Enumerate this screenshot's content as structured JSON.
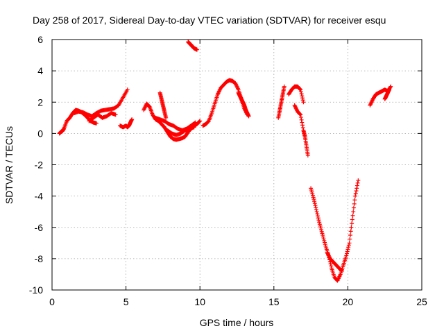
{
  "chart_data": {
    "type": "scatter",
    "title": "Day 258 of 2017, Sidereal Day-to-day VTEC variation (SDTVAR) for receiver esqu",
    "xlabel": "GPS time / hours",
    "ylabel": "SDTVAR / TECUs",
    "xlim": [
      0,
      25
    ],
    "ylim": [
      -10,
      6
    ],
    "xticks": [
      0,
      5,
      10,
      15,
      20,
      25
    ],
    "yticks": [
      -10,
      -8,
      -6,
      -4,
      -2,
      0,
      2,
      4,
      6
    ],
    "grid": true,
    "marker": "+",
    "color": "#ff0000",
    "series": [
      {
        "name": "seg1",
        "x": [
          0.5,
          0.6,
          0.7,
          0.8,
          1.0,
          1.2,
          1.4,
          1.6,
          1.8,
          2.0,
          2.2,
          2.4,
          2.6,
          2.8,
          3.0
        ],
        "y": [
          0.0,
          0.1,
          0.15,
          0.3,
          0.8,
          1.0,
          1.3,
          1.5,
          1.45,
          1.35,
          1.2,
          1.0,
          0.8,
          0.7,
          0.65
        ]
      },
      {
        "name": "seg2",
        "x": [
          1.5,
          1.8,
          2.1,
          2.4,
          2.7,
          3.0,
          3.3,
          3.6,
          3.9,
          4.2,
          4.5,
          4.8,
          5.1
        ],
        "y": [
          1.3,
          1.4,
          1.35,
          1.2,
          1.1,
          1.3,
          1.45,
          1.5,
          1.55,
          1.6,
          1.8,
          2.3,
          2.8
        ]
      },
      {
        "name": "seg3",
        "x": [
          2.5,
          2.8,
          3.1,
          3.4,
          3.7,
          4.0,
          4.3
        ],
        "y": [
          0.8,
          1.0,
          1.2,
          1.0,
          1.1,
          1.3,
          1.2
        ]
      },
      {
        "name": "seg4",
        "x": [
          4.6,
          4.8,
          5.0,
          5.1,
          5.2,
          5.3,
          5.4
        ],
        "y": [
          0.5,
          0.4,
          0.5,
          0.4,
          0.5,
          0.7,
          0.9
        ]
      },
      {
        "name": "seg5",
        "x": [
          6.2,
          6.4,
          6.6,
          6.8,
          7.0,
          7.2,
          7.4,
          7.6,
          7.8,
          8.0,
          8.2,
          8.4,
          8.6,
          8.8,
          9.0,
          9.2,
          9.4,
          9.6,
          9.8,
          10.0
        ],
        "y": [
          1.5,
          1.9,
          1.7,
          1.2,
          0.9,
          0.8,
          0.6,
          0.4,
          0.1,
          -0.2,
          -0.35,
          -0.4,
          -0.35,
          -0.3,
          -0.2,
          0.1,
          0.3,
          0.5,
          0.6,
          0.8
        ]
      },
      {
        "name": "seg6",
        "x": [
          7.0,
          7.3,
          7.6,
          7.9,
          8.2,
          8.5,
          8.8,
          9.1,
          9.4,
          9.7
        ],
        "y": [
          1.0,
          0.9,
          0.8,
          0.6,
          0.5,
          0.3,
          0.2,
          0.3,
          0.5,
          0.7
        ]
      },
      {
        "name": "seg7",
        "x": [
          7.3,
          7.4,
          7.5,
          7.6,
          7.7
        ],
        "y": [
          2.6,
          2.2,
          1.8,
          1.4,
          1.0
        ]
      },
      {
        "name": "seg8",
        "x": [
          7.8,
          8.1,
          8.4,
          8.7,
          9.0,
          9.3,
          9.6
        ],
        "y": [
          0.2,
          0.0,
          -0.1,
          0.0,
          0.2,
          0.3,
          0.4
        ]
      },
      {
        "name": "seg9",
        "x": [
          9.2,
          9.3,
          9.4,
          9.5,
          9.6,
          9.7,
          9.8
        ],
        "y": [
          5.85,
          5.75,
          5.65,
          5.55,
          5.45,
          5.4,
          5.35
        ]
      },
      {
        "name": "seg10",
        "x": [
          10.2,
          10.4,
          10.6,
          10.8,
          11.0,
          11.2,
          11.4,
          11.6,
          11.8,
          12.0,
          12.2,
          12.4,
          12.6,
          12.8,
          13.0,
          13.2
        ],
        "y": [
          0.5,
          0.6,
          0.8,
          1.3,
          1.9,
          2.5,
          2.9,
          3.1,
          3.3,
          3.4,
          3.35,
          3.2,
          2.8,
          2.2,
          1.6,
          1.2
        ]
      },
      {
        "name": "seg11",
        "x": [
          12.6,
          12.7,
          12.8,
          12.9,
          13.0,
          13.1,
          13.2,
          13.3
        ],
        "y": [
          2.6,
          2.4,
          2.2,
          2.0,
          1.8,
          1.5,
          1.3,
          1.1
        ]
      },
      {
        "name": "seg12",
        "x": [
          15.3,
          15.4,
          15.5,
          15.6,
          15.7
        ],
        "y": [
          1.0,
          1.5,
          2.0,
          2.5,
          3.0
        ]
      },
      {
        "name": "seg13",
        "x": [
          16.0,
          16.2,
          16.4,
          16.6,
          16.8,
          17.0
        ],
        "y": [
          2.5,
          2.8,
          3.0,
          3.0,
          2.8,
          2.0
        ]
      },
      {
        "name": "seg14",
        "x": [
          16.4,
          16.6,
          16.8,
          17.0,
          17.1,
          17.2,
          17.3
        ],
        "y": [
          1.8,
          1.4,
          1.2,
          0.2,
          -0.2,
          -0.8,
          -1.4
        ]
      },
      {
        "name": "seg15",
        "x": [
          17.5,
          17.7,
          17.9,
          18.1,
          18.3,
          18.5,
          18.7,
          18.9,
          19.1,
          19.3,
          19.5,
          19.7,
          19.9,
          20.1,
          20.3,
          20.5,
          20.7
        ],
        "y": [
          -3.5,
          -4.2,
          -5.0,
          -5.8,
          -6.5,
          -7.2,
          -7.8,
          -8.6,
          -9.2,
          -9.4,
          -9.0,
          -8.4,
          -7.8,
          -7.0,
          -5.5,
          -4.0,
          -3.0
        ]
      },
      {
        "name": "seg16",
        "x": [
          18.6,
          18.8,
          19.0,
          19.2,
          19.4,
          19.6
        ],
        "y": [
          -7.6,
          -8.0,
          -8.2,
          -8.4,
          -8.6,
          -8.8
        ]
      },
      {
        "name": "seg17",
        "x": [
          21.5,
          21.7,
          21.9,
          22.1,
          22.3,
          22.5,
          22.7,
          22.9
        ],
        "y": [
          1.8,
          2.2,
          2.5,
          2.6,
          2.7,
          2.8,
          2.7,
          3.0
        ]
      },
      {
        "name": "seg18",
        "x": [
          22.5,
          22.6,
          22.7,
          22.8
        ],
        "y": [
          2.2,
          2.4,
          2.6,
          2.8
        ]
      }
    ]
  }
}
